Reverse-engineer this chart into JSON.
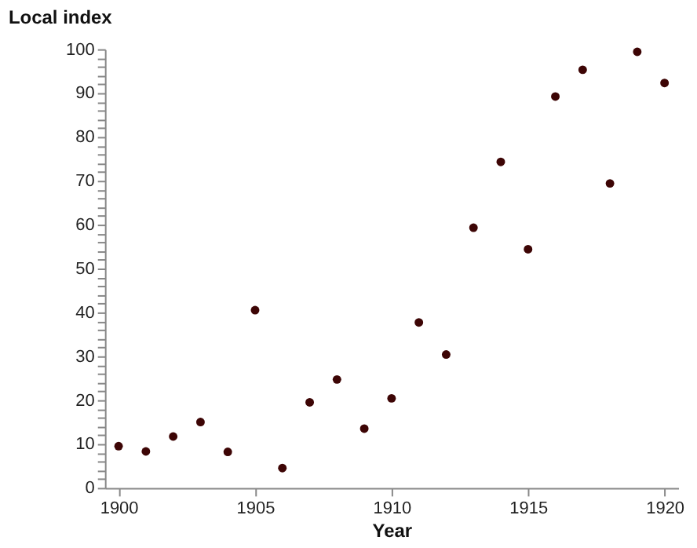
{
  "chart_data": {
    "type": "scatter",
    "xlabel": "Year",
    "ylabel": "Local index",
    "x": [
      1900,
      1901,
      1902,
      1903,
      1904,
      1905,
      1906,
      1907,
      1908,
      1909,
      1910,
      1911,
      1912,
      1913,
      1914,
      1915,
      1916,
      1917,
      1918,
      1919,
      1920
    ],
    "series": [
      {
        "color": "#3d0505",
        "values": [
          9.5,
          8.3,
          11.7,
          15,
          8.2,
          40.5,
          4.5,
          19.5,
          24.7,
          13.5,
          20.4,
          37.7,
          30.4,
          59.3,
          74.3,
          54.4,
          89.2,
          95.3,
          69.4,
          99.4,
          92.3
        ]
      }
    ],
    "xlim": [
      1899.5,
      1920.5
    ],
    "xticks": [
      1900,
      1905,
      1910,
      1915,
      1920
    ],
    "ylim": [
      0,
      100
    ],
    "yticks": [
      0,
      {
        "value": 2,
        "label": null
      },
      {
        "value": 4,
        "label": null
      },
      {
        "value": 6,
        "label": null
      },
      {
        "value": 8,
        "label": null
      },
      10,
      {
        "value": 12,
        "label": null
      },
      {
        "value": 14,
        "label": null
      },
      {
        "value": 16,
        "label": null
      },
      {
        "value": 18,
        "label": null
      },
      20,
      {
        "value": 22,
        "label": null
      },
      {
        "value": 24,
        "label": null
      },
      {
        "value": 26,
        "label": null
      },
      {
        "value": 28,
        "label": null
      },
      30,
      {
        "value": 32,
        "label": null
      },
      {
        "value": 34,
        "label": null
      },
      {
        "value": 36,
        "label": null
      },
      {
        "value": 38,
        "label": null
      },
      40,
      {
        "value": 42,
        "label": null
      },
      {
        "value": 44,
        "label": null
      },
      {
        "value": 46,
        "label": null
      },
      {
        "value": 48,
        "label": null
      },
      50,
      {
        "value": 52,
        "label": null
      },
      {
        "value": 54,
        "label": null
      },
      {
        "value": 56,
        "label": null
      },
      {
        "value": 58,
        "label": null
      },
      60,
      {
        "value": 62,
        "label": null
      },
      {
        "value": 64,
        "label": null
      },
      {
        "value": 66,
        "label": null
      },
      {
        "value": 68,
        "label": null
      },
      70,
      {
        "value": 72,
        "label": null
      },
      {
        "value": 74,
        "label": null
      },
      {
        "value": 76,
        "label": null
      },
      {
        "value": 78,
        "label": null
      },
      80,
      {
        "value": 82,
        "label": null
      },
      {
        "value": 84,
        "label": null
      },
      {
        "value": 86,
        "label": null
      },
      {
        "value": 88,
        "label": null
      },
      90,
      {
        "value": 92,
        "label": null
      },
      {
        "value": 94,
        "label": null
      },
      {
        "value": 96,
        "label": null
      },
      {
        "value": 98,
        "label": null
      },
      100
    ],
    "grid": false,
    "marker": "circle"
  }
}
